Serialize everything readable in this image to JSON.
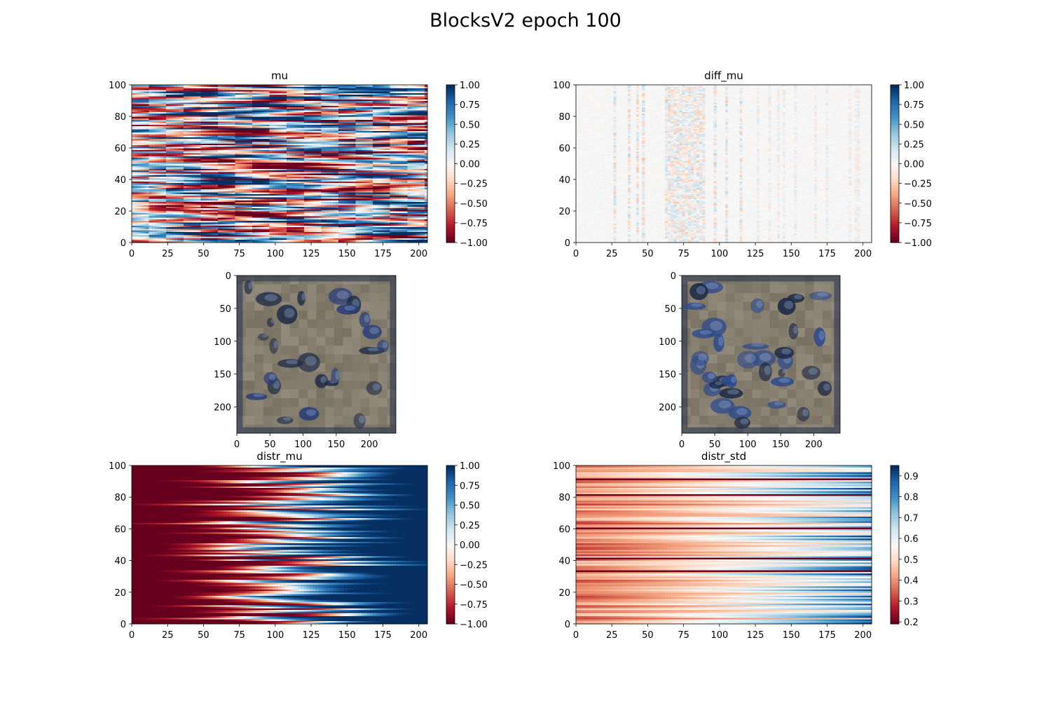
{
  "figure": {
    "suptitle": "BlocksV2 epoch 100"
  },
  "colormap": {
    "name": "RdBu",
    "stops": [
      "#67001f",
      "#b2182b",
      "#d6604d",
      "#f4a582",
      "#fddbc7",
      "#f7f7f7",
      "#d1e5f0",
      "#92c5de",
      "#4393c3",
      "#2166ac",
      "#053061"
    ]
  },
  "chart_data": [
    {
      "id": "mu",
      "type": "heatmap",
      "title": "mu",
      "xlim": [
        0,
        206
      ],
      "ylim": [
        0,
        100
      ],
      "xticks": [
        0,
        25,
        50,
        75,
        100,
        125,
        150,
        175,
        200
      ],
      "yticks": [
        0,
        20,
        40,
        60,
        80,
        100
      ],
      "colorbar": {
        "vmin": -1.0,
        "vmax": 1.0,
        "ticks": [
          1.0,
          0.75,
          0.5,
          0.25,
          0.0,
          -0.25,
          -0.5,
          -0.75,
          -1.0
        ],
        "ticklabels": [
          "1.00",
          "0.75",
          "0.50",
          "0.25",
          "0.00",
          "−0.25",
          "−0.50",
          "−0.75",
          "−1.00"
        ]
      },
      "pattern": "noisy rows of saturated red/blue varying along x",
      "rows": 100
    },
    {
      "id": "diff_mu",
      "type": "heatmap",
      "title": "diff_mu",
      "xlim": [
        0,
        206
      ],
      "ylim": [
        0,
        100
      ],
      "xticks": [
        0,
        25,
        50,
        75,
        100,
        125,
        150,
        175,
        200
      ],
      "yticks": [
        0,
        20,
        40,
        60,
        80,
        100
      ],
      "colorbar": {
        "vmin": -1.0,
        "vmax": 1.0,
        "ticks": [
          1.0,
          0.75,
          0.5,
          0.25,
          0.0,
          -0.25,
          -0.5,
          -0.75,
          -1.0
        ],
        "ticklabels": [
          "1.00",
          "0.75",
          "0.50",
          "0.25",
          "0.00",
          "−0.25",
          "−0.50",
          "−0.75",
          "−1.00"
        ]
      },
      "pattern": "mostly near zero (white) with faint streaks",
      "rows": 100
    },
    {
      "id": "img1",
      "type": "image",
      "title": "",
      "xlim": [
        0,
        240
      ],
      "ylim": [
        240,
        0
      ],
      "xticks": [
        0,
        50,
        100,
        150,
        200
      ],
      "yticks": [
        0,
        50,
        100,
        150,
        200
      ],
      "base_color": "#857e6a",
      "blob_color": "#2a3f78"
    },
    {
      "id": "img2",
      "type": "image",
      "title": "",
      "xlim": [
        0,
        240
      ],
      "ylim": [
        240,
        0
      ],
      "xticks": [
        0,
        50,
        100,
        150,
        200
      ],
      "yticks": [
        0,
        50,
        100,
        150,
        200
      ],
      "base_color": "#857d68",
      "blob_color": "#2d4a8c"
    },
    {
      "id": "distr_mu",
      "type": "heatmap",
      "title": "distr_mu",
      "xlim": [
        0,
        206
      ],
      "ylim": [
        0,
        100
      ],
      "xticks": [
        0,
        25,
        50,
        75,
        100,
        125,
        150,
        175,
        200
      ],
      "yticks": [
        0,
        20,
        40,
        60,
        80,
        100
      ],
      "colorbar": {
        "vmin": -1.0,
        "vmax": 1.0,
        "ticks": [
          1.0,
          0.75,
          0.5,
          0.25,
          0.0,
          -0.25,
          -0.5,
          -0.75,
          -1.0
        ],
        "ticklabels": [
          "1.00",
          "0.75",
          "0.50",
          "0.25",
          "0.00",
          "−0.25",
          "−0.50",
          "−0.75",
          "−1.00"
        ]
      },
      "pattern": "each row ramps from red (-1) on left to blue (+1) on right",
      "rows": 100
    },
    {
      "id": "distr_std",
      "type": "heatmap",
      "title": "distr_std",
      "xlim": [
        0,
        206
      ],
      "ylim": [
        0,
        100
      ],
      "xticks": [
        0,
        25,
        50,
        75,
        100,
        125,
        150,
        175,
        200
      ],
      "yticks": [
        0,
        20,
        40,
        60,
        80,
        100
      ],
      "colorbar": {
        "vmin": 0.19,
        "vmax": 0.95,
        "ticks": [
          0.9,
          0.8,
          0.7,
          0.6,
          0.5,
          0.4,
          0.3,
          0.2
        ],
        "ticklabels": [
          "0.9",
          "0.8",
          "0.7",
          "0.6",
          "0.5",
          "0.4",
          "0.3",
          "0.2"
        ]
      },
      "pattern": "rows of values ~0.3-0.5 on left rising toward 0.6-0.9 on right",
      "rows": 100
    }
  ]
}
